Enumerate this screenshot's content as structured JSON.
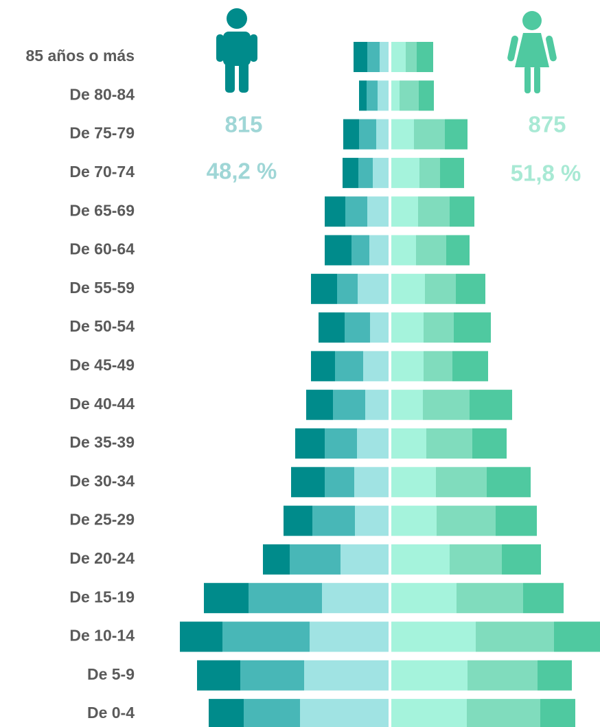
{
  "chart_data": {
    "type": "pyramid",
    "categories": [
      "85 años o más",
      "De 80-84",
      "De 75-79",
      "De 70-74",
      "De 65-69",
      "De 60-64",
      "De 55-59",
      "De 50-54",
      "De 45-49",
      "De 40-44",
      "De 35-39",
      "De 30-34",
      "De 25-29",
      "De 20-24",
      "De 15-19",
      "De 10-14",
      "De 5-9",
      "De 0-4"
    ],
    "male_total": 815,
    "male_share": {
      "value": 48.2,
      "label": "48,2 %"
    },
    "female_total": 875,
    "female_share": {
      "value": 51.8,
      "label": "51,8 %"
    },
    "series": [
      {
        "side": "left",
        "color": "#a0e3e3",
        "values": [
          13,
          16,
          18,
          23,
          31,
          28,
          45,
          27,
          37,
          34,
          46,
          50,
          49,
          70,
          97,
          115,
          123,
          129
        ]
      },
      {
        "side": "left",
        "color": "#48b7b7",
        "values": [
          18,
          16,
          25,
          21,
          32,
          26,
          30,
          37,
          41,
          47,
          47,
          43,
          62,
          74,
          107,
          127,
          93,
          82
        ]
      },
      {
        "side": "left",
        "color": "#008b8b",
        "values": [
          20,
          11,
          23,
          23,
          30,
          39,
          38,
          38,
          35,
          39,
          43,
          49,
          42,
          39,
          65,
          62,
          63,
          51
        ]
      },
      {
        "side": "right",
        "color": "#a5f3dc",
        "values": [
          21,
          12,
          33,
          41,
          39,
          36,
          49,
          47,
          47,
          46,
          51,
          65,
          66,
          85,
          95,
          123,
          111,
          110
        ]
      },
      {
        "side": "right",
        "color": "#80dcbd",
        "values": [
          16,
          28,
          45,
          30,
          46,
          44,
          45,
          44,
          42,
          68,
          67,
          74,
          86,
          76,
          97,
          114,
          102,
          107
        ]
      },
      {
        "side": "right",
        "color": "#4fc9a0",
        "values": [
          24,
          22,
          33,
          35,
          36,
          34,
          43,
          54,
          52,
          62,
          50,
          64,
          60,
          57,
          59,
          67,
          50,
          51
        ]
      }
    ]
  }
}
